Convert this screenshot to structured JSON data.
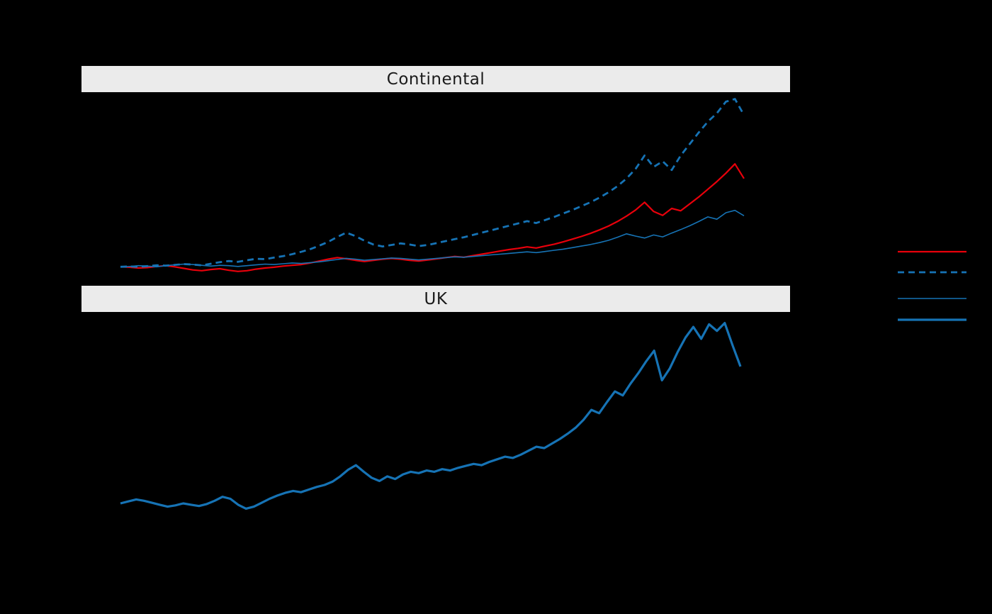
{
  "figure": {
    "background_color": "#000000",
    "strip_color": "#ebebeb",
    "strip_text_color": "#1a1a1a"
  },
  "chart_data": [
    {
      "type": "line",
      "title": "Continental",
      "x_tick_labels_visible": false,
      "y_tick_labels_visible": false,
      "grid": false,
      "ylim": [
        60,
        540
      ],
      "series": [
        {
          "name": "red-solid-medium",
          "color": "#e8000b",
          "dash": "solid",
          "width": "medium",
          "values": [
            100,
            99,
            97,
            98,
            101,
            103,
            100,
            96,
            92,
            90,
            93,
            95,
            91,
            88,
            90,
            94,
            97,
            99,
            102,
            104,
            106,
            110,
            115,
            120,
            124,
            121,
            117,
            114,
            117,
            120,
            122,
            120,
            117,
            115,
            118,
            121,
            124,
            127,
            125,
            129,
            133,
            137,
            141,
            145,
            148,
            152,
            149,
            154,
            159,
            165,
            172,
            179,
            187,
            196,
            206,
            218,
            232,
            248,
            268,
            244,
            234,
            252,
            246,
            264,
            282,
            302,
            322,
            344,
            368,
            330
          ]
        },
        {
          "name": "blue-dashed-thick",
          "color": "#1673b5",
          "dash": "dashed",
          "width": "thick",
          "values": [
            100,
            101,
            100,
            102,
            104,
            103,
            105,
            107,
            106,
            104,
            108,
            112,
            115,
            113,
            117,
            121,
            120,
            124,
            128,
            133,
            139,
            146,
            155,
            165,
            178,
            189,
            180,
            168,
            158,
            153,
            157,
            161,
            158,
            154,
            157,
            162,
            167,
            172,
            177,
            183,
            189,
            195,
            201,
            207,
            213,
            219,
            214,
            222,
            230,
            239,
            248,
            258,
            268,
            280,
            294,
            310,
            330,
            355,
            390,
            360,
            375,
            352,
            390,
            420,
            450,
            478,
            500,
            530,
            537,
            495
          ]
        },
        {
          "name": "blue-solid-thin",
          "color": "#1673b5",
          "dash": "solid",
          "width": "thin",
          "values": [
            100,
            101,
            103,
            102,
            100,
            103,
            105,
            107,
            106,
            104,
            102,
            104,
            103,
            101,
            103,
            105,
            107,
            106,
            108,
            110,
            109,
            111,
            113,
            116,
            119,
            122,
            120,
            117,
            119,
            121,
            123,
            122,
            120,
            118,
            120,
            122,
            124,
            126,
            125,
            127,
            129,
            131,
            133,
            135,
            137,
            139,
            137,
            140,
            143,
            146,
            150,
            154,
            158,
            163,
            169,
            177,
            186,
            180,
            175,
            183,
            178,
            188,
            197,
            207,
            218,
            230,
            224,
            241,
            247,
            233
          ]
        }
      ]
    },
    {
      "type": "line",
      "title": "UK",
      "x_tick_labels_visible": false,
      "y_tick_labels_visible": false,
      "grid": false,
      "ylim": [
        -40,
        380
      ],
      "series": [
        {
          "name": "blue-solid-thick",
          "color": "#1673b5",
          "dash": "solid",
          "width": "xthick",
          "values": [
            100,
            103,
            106,
            104,
            101,
            98,
            95,
            97,
            100,
            98,
            96,
            99,
            104,
            110,
            107,
            98,
            92,
            95,
            101,
            107,
            112,
            116,
            119,
            117,
            121,
            125,
            128,
            133,
            141,
            151,
            158,
            148,
            139,
            134,
            141,
            137,
            144,
            148,
            146,
            150,
            148,
            152,
            150,
            154,
            157,
            160,
            158,
            163,
            167,
            171,
            169,
            174,
            180,
            186,
            184,
            191,
            198,
            206,
            215,
            227,
            242,
            237,
            254,
            270,
            264,
            282,
            298,
            316,
            332,
            287,
            305,
            330,
            352,
            368,
            350,
            372,
            362,
            374,
            340,
            308
          ]
        }
      ]
    }
  ],
  "legend": {
    "labels_visible": false,
    "entries": [
      {
        "sample": "red-solid-line",
        "color": "#e8000b",
        "dash": "solid",
        "weight": 2.2
      },
      {
        "sample": "blue-dashed-line",
        "color": "#1673b5",
        "dash": "dashed",
        "weight": 2.8
      },
      {
        "sample": "blue-thin-line",
        "color": "#1673b5",
        "dash": "solid",
        "weight": 1.6
      },
      {
        "sample": "blue-thick-line",
        "color": "#1673b5",
        "dash": "solid",
        "weight": 3.2
      }
    ]
  }
}
